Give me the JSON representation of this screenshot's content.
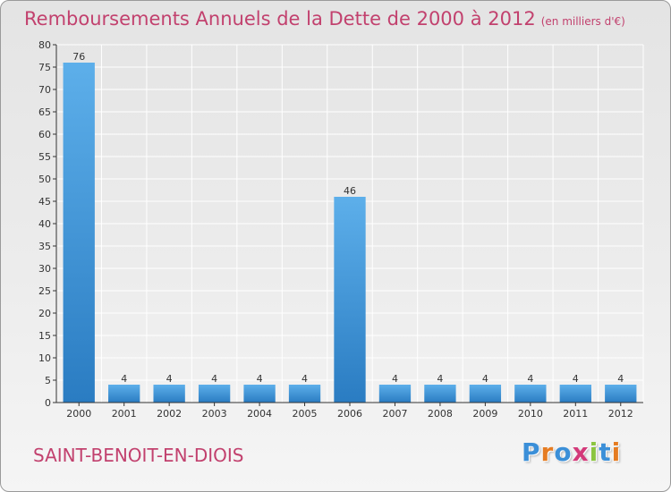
{
  "title": "Remboursements Annuels de la Dette de 2000 à 2012",
  "subtitle": "(en milliers d'€)",
  "commune": "SAINT-BENOIT-EN-DIOIS",
  "logo": {
    "text": "Proxiti",
    "letters": [
      "P",
      "r",
      "o",
      "x",
      "i",
      "t",
      "i"
    ],
    "letter_colors": [
      "#3b8fd8",
      "#e57c22",
      "#3b8fd8",
      "#d33a7a",
      "#8cc540",
      "#3b8fd8",
      "#e57c22"
    ]
  },
  "colors": {
    "title": "#c2416e",
    "bar_light": "#5dafea",
    "bar_dark": "#2a7cc2",
    "axis": "#333333",
    "grid": "#ffffff"
  },
  "chart_data": {
    "type": "bar",
    "categories": [
      "2000",
      "2001",
      "2002",
      "2003",
      "2004",
      "2005",
      "2006",
      "2007",
      "2008",
      "2009",
      "2010",
      "2011",
      "2012"
    ],
    "values": [
      76,
      4,
      4,
      4,
      4,
      4,
      46,
      4,
      4,
      4,
      4,
      4,
      4
    ],
    "data_labels": [
      "76",
      "4",
      "4",
      "4",
      "4",
      "4",
      "46",
      "4",
      "4",
      "4",
      "4",
      "4",
      "4"
    ],
    "ylim": [
      0,
      80
    ],
    "yticks": [
      0,
      5,
      10,
      15,
      20,
      25,
      30,
      35,
      40,
      45,
      50,
      55,
      60,
      65,
      70,
      75,
      80
    ],
    "grid": true,
    "xlabel": "",
    "ylabel": ""
  }
}
